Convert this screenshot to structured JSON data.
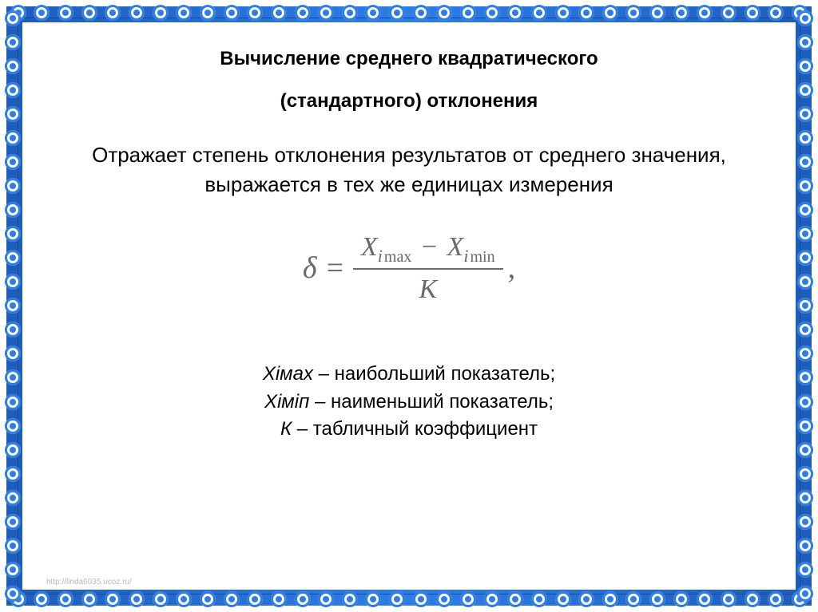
{
  "title_line1": "Вычисление среднего квадратического",
  "title_line2": "(стандартного) отклонения",
  "description": "Отражает степень отклонения результатов от среднего значения, выражается в тех же единицах измерения",
  "formula": {
    "lhs": "δ",
    "equals": "=",
    "numerator_x1": "X",
    "numerator_sub1_i": "i",
    "numerator_sub1_word": "max",
    "numerator_minus": "−",
    "numerator_x2": "X",
    "numerator_sub2_i": "i",
    "numerator_sub2_word": "min",
    "denominator": "K",
    "trailing": ","
  },
  "legend": {
    "line1_var": "Хімах",
    "line1_text": " – наибольший показатель;",
    "line2_var": "Хіміп",
    "line2_text": " – наименьший показатель;",
    "line3_var": "К",
    "line3_text": " – табличный коэффициент"
  },
  "colors": {
    "border_blue_dark": "#1e5db8",
    "border_blue_light": "#2d7de8",
    "text_black": "#000000",
    "formula_gray": "#6a6a6a",
    "background": "#ffffff"
  },
  "watermark": "http://linda6035.ucoz.ru/",
  "lace_count_horizontal": 34,
  "lace_count_vertical": 25
}
